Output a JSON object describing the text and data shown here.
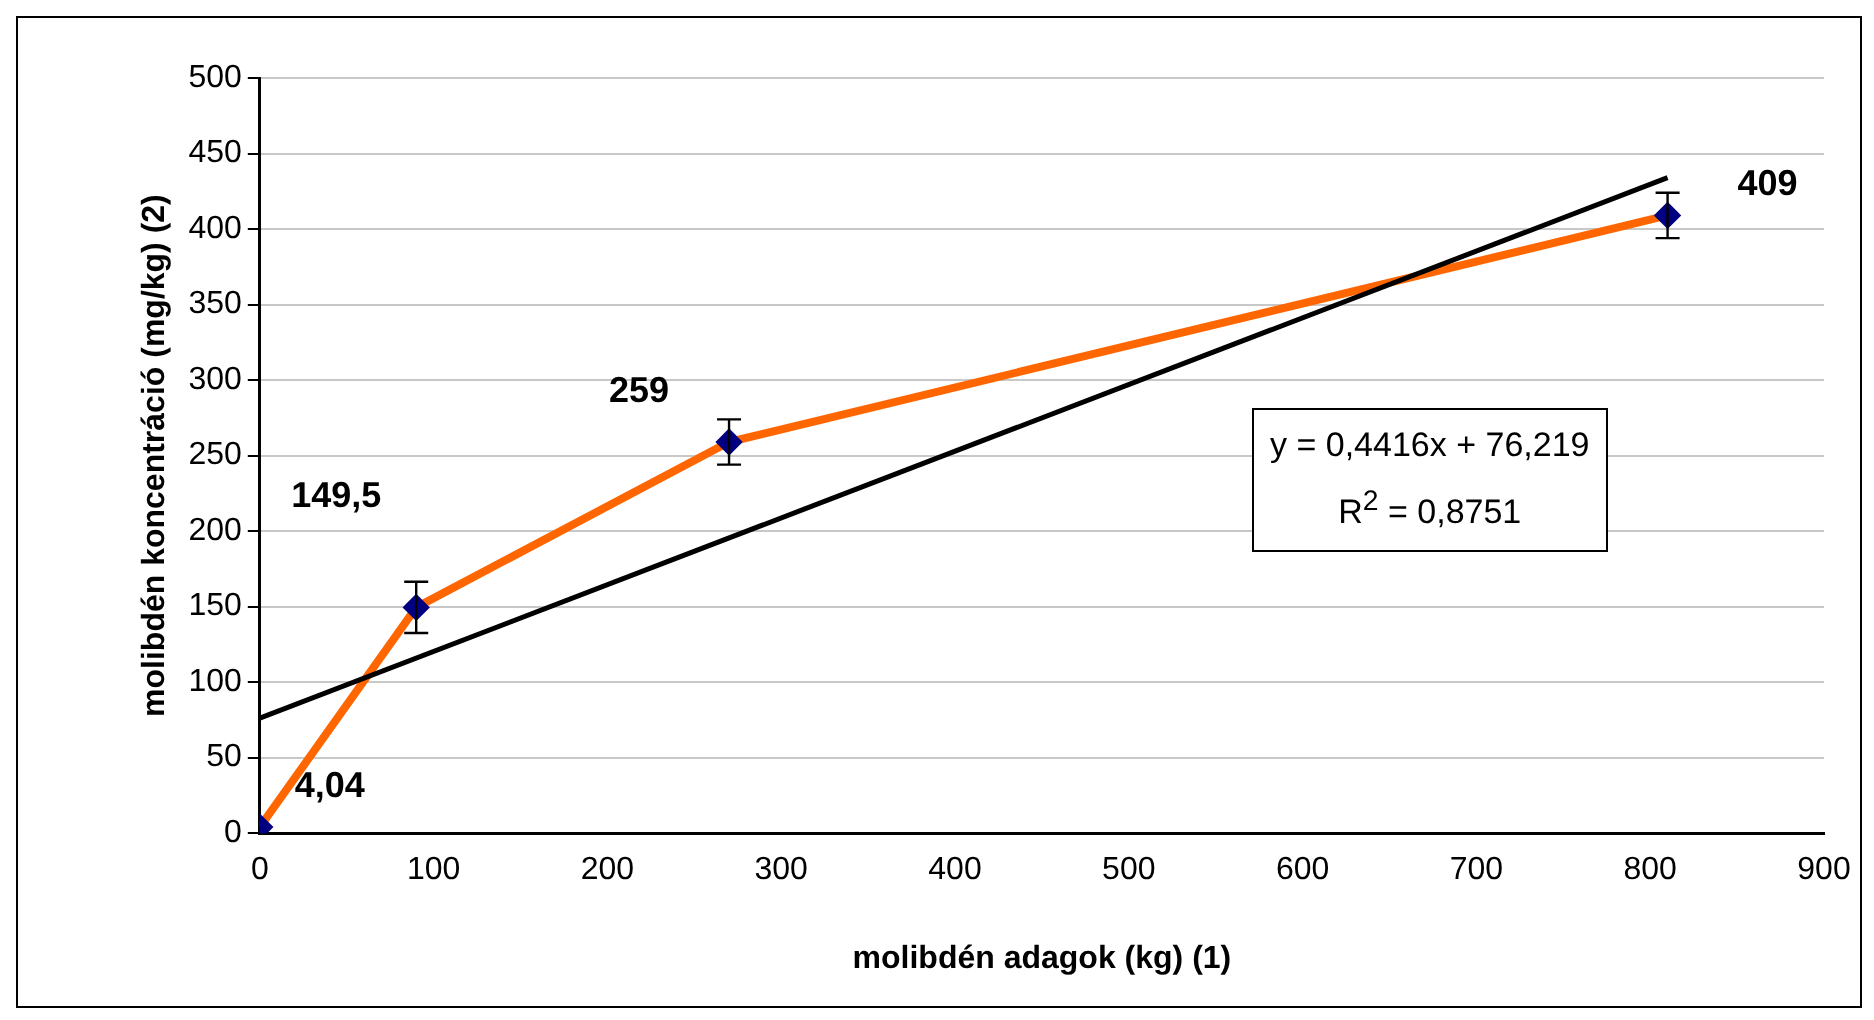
{
  "chart_data": {
    "type": "line",
    "xlabel": "molibdén adagok (kg) (1)",
    "ylabel": "molibdén koncentráció (mg/kg) (2)",
    "xlim": [
      0,
      900
    ],
    "xticks": [
      0,
      100,
      200,
      300,
      400,
      500,
      600,
      700,
      800,
      900
    ],
    "ylim": [
      0,
      500
    ],
    "yticks": [
      0,
      50,
      100,
      150,
      200,
      250,
      300,
      350,
      400,
      450,
      500
    ],
    "grid": "y",
    "legend": false,
    "line_style": "solid",
    "series": [
      {
        "color": "#ff6600",
        "marker": "diamond",
        "x": [
          0,
          90,
          270,
          810
        ],
        "values": [
          4.04,
          149.5,
          259,
          409
        ],
        "errors": [
          null,
          17,
          15,
          15
        ],
        "value_labels": [
          "4,04",
          "149,5",
          "259",
          "409"
        ]
      },
      {
        "color": "#000000",
        "marker": "none",
        "x": [
          0,
          810
        ],
        "values": [
          76.2,
          434
        ]
      }
    ],
    "annotations": [
      "y = 0,4416x + 76,219",
      "R$^{2}$ = 0,8751"
    ]
  }
}
